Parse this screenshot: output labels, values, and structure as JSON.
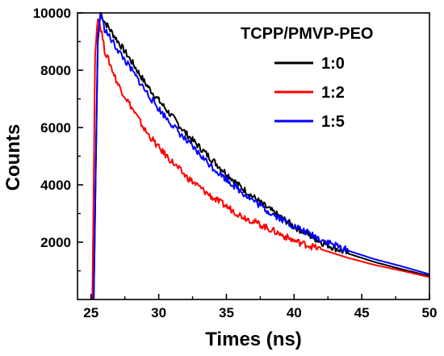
{
  "chart_data": {
    "type": "line",
    "title": "",
    "xlabel": "Times (ns)",
    "ylabel": "Counts",
    "xlim": [
      24,
      50
    ],
    "ylim": [
      0,
      10000
    ],
    "x_ticks": [
      25,
      30,
      35,
      40,
      45,
      50
    ],
    "x_tick_labels": [
      "25",
      "30",
      "35",
      "40",
      "45",
      "50"
    ],
    "y_ticks": [
      2000,
      4000,
      6000,
      8000,
      10000
    ],
    "y_tick_labels": [
      "2000",
      "4000",
      "6000",
      "8000",
      "10000"
    ],
    "grid": false,
    "legend": {
      "title": "TCPP/PMVP-PEO",
      "placement": "top-right"
    },
    "series": [
      {
        "name": "1:0",
        "color": "#000000",
        "x": [
          25.2,
          25.5,
          25.7,
          26,
          26.5,
          27,
          28,
          29,
          30,
          32,
          34,
          36,
          38,
          40,
          42,
          44,
          46,
          48,
          50
        ],
        "y": [
          0,
          9000,
          10000,
          9700,
          9350,
          9000,
          8300,
          7550,
          6950,
          5800,
          4850,
          3950,
          3200,
          2550,
          2000,
          1600,
          1300,
          1050,
          820
        ]
      },
      {
        "name": "1:2",
        "color": "#ff0000",
        "x": [
          25.1,
          25.3,
          25.5,
          25.8,
          26,
          26.5,
          27,
          28,
          29,
          30,
          32,
          34,
          36,
          38,
          40,
          42,
          44,
          46,
          48,
          50
        ],
        "y": [
          0,
          8500,
          9900,
          9300,
          8700,
          8100,
          7500,
          6700,
          5900,
          5300,
          4300,
          3550,
          2950,
          2500,
          2050,
          1750,
          1450,
          1200,
          1000,
          780
        ]
      },
      {
        "name": "1:5",
        "color": "#0000ff",
        "x": [
          25.2,
          25.5,
          25.7,
          26,
          26.5,
          27,
          28,
          29,
          30,
          32,
          34,
          36,
          38,
          40,
          42,
          44,
          46,
          48,
          50
        ],
        "y": [
          0,
          9200,
          10000,
          9450,
          9050,
          8700,
          8000,
          7300,
          6650,
          5550,
          4600,
          3800,
          3100,
          2550,
          2100,
          1700,
          1400,
          1150,
          880
        ]
      }
    ]
  }
}
